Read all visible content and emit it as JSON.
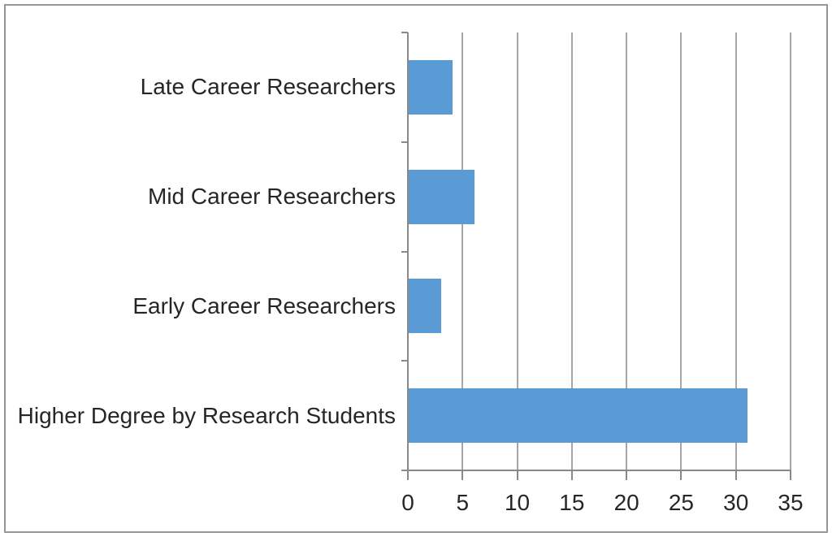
{
  "chart_data": {
    "type": "bar",
    "orientation": "horizontal",
    "title": "",
    "xlabel": "",
    "ylabel": "",
    "categories": [
      "Late Career Researchers",
      "Mid Career Researchers",
      "Early Career Researchers",
      "Higher Degree by Research Students"
    ],
    "values": [
      4,
      6,
      3,
      31
    ],
    "xlim": [
      0,
      35
    ],
    "xticks": [
      0,
      5,
      10,
      15,
      20,
      25,
      30,
      35
    ],
    "grid": true,
    "legend_position": "none",
    "colors": {
      "bar": "#5B9BD5",
      "gridline": "#A6A6A6",
      "axis": "#898989",
      "text": "#262626",
      "frame_border": "#969696",
      "background": "#FFFFFF"
    }
  }
}
